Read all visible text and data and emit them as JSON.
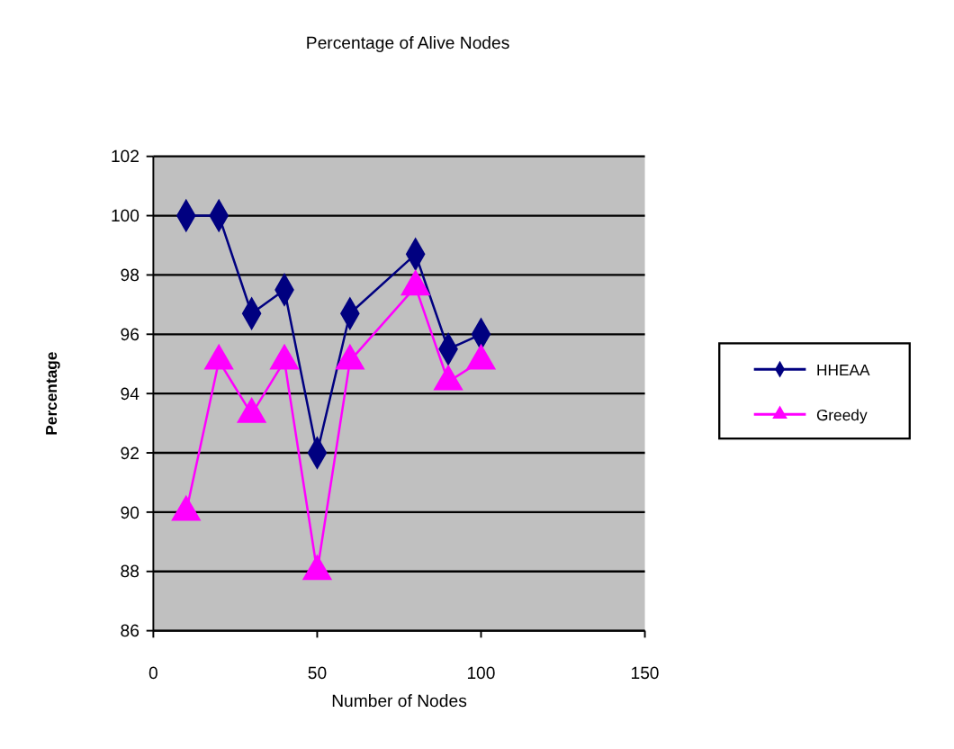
{
  "chart_data": {
    "type": "line",
    "title": "Percentage of Alive Nodes",
    "xlabel": "Number of Nodes",
    "ylabel": "Percentage",
    "x": [
      10,
      20,
      30,
      40,
      50,
      60,
      80,
      90,
      100
    ],
    "series": [
      {
        "name": "HHEAA",
        "color": "#000080",
        "marker": "diamond",
        "values": [
          100,
          100,
          96.7,
          97.5,
          92,
          96.7,
          98.7,
          95.5,
          96
        ]
      },
      {
        "name": "Greedy",
        "color": "#ff00ff",
        "marker": "triangle",
        "values": [
          90,
          95.1,
          93.3,
          95.1,
          88,
          95.1,
          97.6,
          94.4,
          95.1
        ]
      }
    ],
    "xlim": [
      0,
      150
    ],
    "xticks": [
      0,
      50,
      100,
      150
    ],
    "ylim": [
      86,
      102
    ],
    "yticks": [
      86,
      88,
      90,
      92,
      94,
      96,
      98,
      100,
      102
    ],
    "grid": "y",
    "legend": "right"
  }
}
